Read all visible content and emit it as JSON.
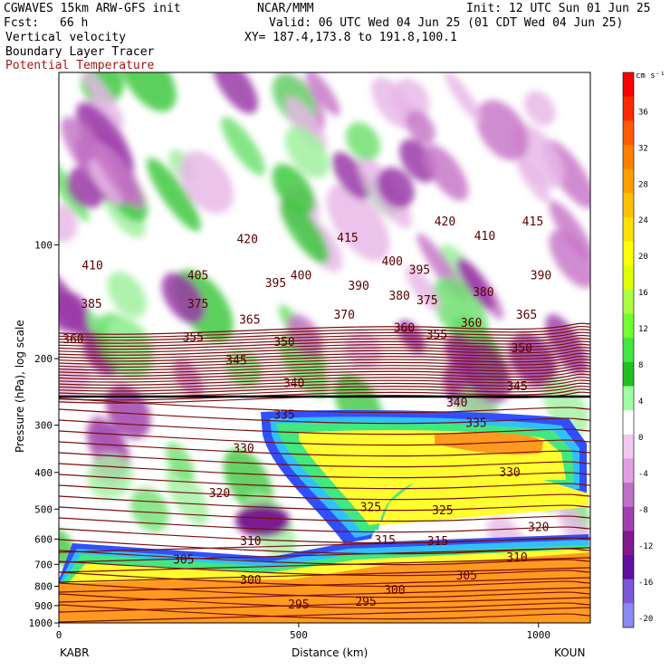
{
  "header": {
    "model": "CGWAVES 15km ARW-GFS init",
    "org": "NCAR/MMM",
    "init": "Init: 12 UTC Sun 01 Jun 25",
    "fcst_label": "Fcst:",
    "fcst_value": "66 h",
    "valid": "Valid: 06 UTC Wed 04 Jun 25 (01 CDT Wed 04 Jun 25)",
    "field1": "Vertical velocity",
    "field2": "Boundary Layer Tracer",
    "field3": "Potential Temperature",
    "xy": "XY= 187.4,173.8 to 191.8,100.1"
  },
  "chart_data": {
    "type": "heatmap",
    "ylabel": "Pressure (hPa), log scale",
    "xlabel": "Distance (km)",
    "xlim": [
      0,
      1108
    ],
    "ylim_hpa": [
      1000,
      35
    ],
    "y_scale": "log",
    "x_ticks": [
      {
        "label": "0",
        "value": 0
      },
      {
        "label": "500",
        "value": 500
      },
      {
        "label": "1000",
        "value": 1000
      }
    ],
    "y_ticks": [
      {
        "label": "1000",
        "value": 1000
      },
      {
        "label": "900",
        "value": 900
      },
      {
        "label": "800",
        "value": 800
      },
      {
        "label": "700",
        "value": 700
      },
      {
        "label": "600",
        "value": 600
      },
      {
        "label": "500",
        "value": 500
      },
      {
        "label": "400",
        "value": 400
      },
      {
        "label": "300",
        "value": 300
      },
      {
        "label": "200",
        "value": 200
      },
      {
        "label": "100",
        "value": 100
      }
    ],
    "endpoints": {
      "left": "KABR",
      "right": "KOUN"
    },
    "colorbar": {
      "units": "cm s⁻¹",
      "tick_labels": [
        "36",
        "32",
        "28",
        "24",
        "20",
        "16",
        "12",
        "8",
        "4",
        "0",
        "-4",
        "-8",
        "-12",
        "-16",
        "-20"
      ],
      "colors": [
        "#ff0000",
        "#ff2a00",
        "#ff5a00",
        "#ff7f00",
        "#ff9f00",
        "#ffc000",
        "#ffe000",
        "#ffff00",
        "#dfff00",
        "#aaff40",
        "#70ff30",
        "#40e840",
        "#20c020",
        "#a0ffa0",
        "#ffffff",
        "#f0c8f0",
        "#e0a0e0",
        "#c070c8",
        "#a040b0",
        "#801890",
        "#6010a0",
        "#7a5ad8",
        "#8a8af0"
      ],
      "note": "vertical velocity"
    },
    "theta_labels": [
      {
        "v": "410",
        "x": 70,
        "p": 115
      },
      {
        "v": "405",
        "x": 290,
        "p": 122
      },
      {
        "v": "420",
        "x": 393,
        "p": 98
      },
      {
        "v": "395",
        "x": 452,
        "p": 128
      },
      {
        "v": "400",
        "x": 505,
        "p": 122
      },
      {
        "v": "415",
        "x": 602,
        "p": 97
      },
      {
        "v": "390",
        "x": 625,
        "p": 130
      },
      {
        "v": "400",
        "x": 695,
        "p": 112
      },
      {
        "v": "395",
        "x": 752,
        "p": 118
      },
      {
        "v": "420",
        "x": 805,
        "p": 88
      },
      {
        "v": "410",
        "x": 888,
        "p": 96
      },
      {
        "v": "415",
        "x": 988,
        "p": 88
      },
      {
        "v": "390",
        "x": 1005,
        "p": 122
      },
      {
        "v": "380",
        "x": 710,
        "p": 138
      },
      {
        "v": "375",
        "x": 768,
        "p": 142
      },
      {
        "v": "380",
        "x": 885,
        "p": 135
      },
      {
        "v": "385",
        "x": 68,
        "p": 145
      },
      {
        "v": "375",
        "x": 290,
        "p": 145
      },
      {
        "v": "370",
        "x": 595,
        "p": 155
      },
      {
        "v": "365",
        "x": 398,
        "p": 160
      },
      {
        "v": "365",
        "x": 975,
        "p": 155
      },
      {
        "v": "360",
        "x": 720,
        "p": 168
      },
      {
        "v": "360",
        "x": 860,
        "p": 163
      },
      {
        "v": "355",
        "x": 788,
        "p": 175
      },
      {
        "v": "360",
        "x": 30,
        "p": 180
      },
      {
        "v": "355",
        "x": 280,
        "p": 178
      },
      {
        "v": "350",
        "x": 470,
        "p": 183
      },
      {
        "v": "350",
        "x": 965,
        "p": 190
      },
      {
        "v": "345",
        "x": 370,
        "p": 205
      },
      {
        "v": "340",
        "x": 490,
        "p": 235
      },
      {
        "v": "345",
        "x": 955,
        "p": 240
      },
      {
        "v": "340",
        "x": 830,
        "p": 265
      },
      {
        "v": "335",
        "x": 470,
        "p": 285
      },
      {
        "v": "335",
        "x": 870,
        "p": 300
      },
      {
        "v": "330",
        "x": 385,
        "p": 350
      },
      {
        "v": "330",
        "x": 940,
        "p": 405
      },
      {
        "v": "320",
        "x": 335,
        "p": 460
      },
      {
        "v": "325",
        "x": 650,
        "p": 500
      },
      {
        "v": "325",
        "x": 800,
        "p": 510
      },
      {
        "v": "320",
        "x": 1000,
        "p": 565
      },
      {
        "v": "310",
        "x": 400,
        "p": 615
      },
      {
        "v": "315",
        "x": 680,
        "p": 612
      },
      {
        "v": "315",
        "x": 790,
        "p": 615
      },
      {
        "v": "310",
        "x": 955,
        "p": 680
      },
      {
        "v": "305",
        "x": 260,
        "p": 690
      },
      {
        "v": "305",
        "x": 850,
        "p": 760
      },
      {
        "v": "300",
        "x": 400,
        "p": 780
      },
      {
        "v": "300",
        "x": 700,
        "p": 830
      },
      {
        "v": "295",
        "x": 500,
        "p": 905
      },
      {
        "v": "295",
        "x": 640,
        "p": 890
      }
    ]
  }
}
